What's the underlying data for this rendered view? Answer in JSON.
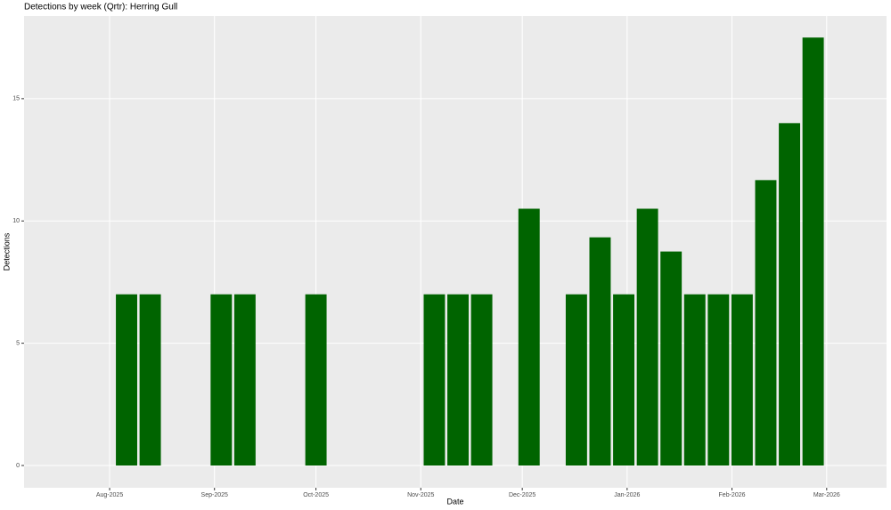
{
  "chart_data": {
    "type": "bar",
    "title": "Detections by week (Qrtr): Herring Gull",
    "x_label": "Date",
    "y_label": "Detections",
    "x": [
      5,
      12,
      33,
      40,
      61,
      96,
      103,
      110,
      124,
      138,
      145,
      152,
      159,
      166,
      173,
      180,
      187,
      194,
      201,
      208
    ],
    "values": [
      7,
      7,
      7,
      7,
      7,
      7,
      7,
      7,
      10.5,
      7,
      9.33,
      7,
      10.5,
      8.75,
      7,
      7,
      7,
      11.67,
      14,
      17.5
    ],
    "color": "#006400",
    "xlim": [
      -25.3,
      229.7
    ],
    "xticks": [
      {
        "value": 0,
        "label": "Aug-2025"
      },
      {
        "value": 31,
        "label": "Sep-2025"
      },
      {
        "value": 61,
        "label": "Oct-2025"
      },
      {
        "value": 92,
        "label": "Nov-2025"
      },
      {
        "value": 122,
        "label": "Dec-2025"
      },
      {
        "value": 153,
        "label": "Jan-2026"
      },
      {
        "value": 184,
        "label": "Feb-2026"
      },
      {
        "value": 212,
        "label": "Mar-2026"
      }
    ],
    "ylim": [
      -0.91,
      18.38
    ],
    "yticks": [
      0,
      5,
      10,
      15
    ],
    "grid": true
  }
}
